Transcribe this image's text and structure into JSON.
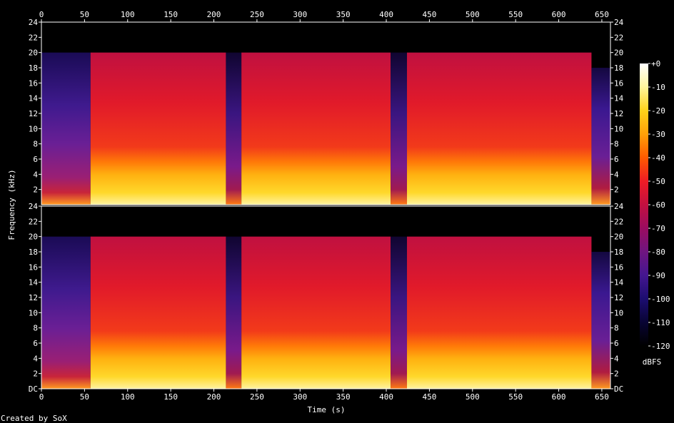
{
  "chart_data": {
    "type": "heatmap",
    "title": "",
    "xlabel": "Time (s)",
    "ylabel": "Frequency (kHz)",
    "xlim": [
      0,
      660
    ],
    "ylim_khz": [
      0,
      24
    ],
    "x_ticks": [
      0,
      50,
      100,
      150,
      200,
      250,
      300,
      350,
      400,
      450,
      500,
      550,
      600,
      650
    ],
    "channel_top_ticks": [
      "24",
      "22",
      "20",
      "18",
      "16",
      "14",
      "12",
      "10",
      "8",
      "6",
      "4",
      "2"
    ],
    "channel_bottom_ticks": [
      "24",
      "22",
      "20",
      "18",
      "16",
      "14",
      "12",
      "10",
      "8",
      "6",
      "4",
      "2",
      "DC"
    ],
    "channels": 2,
    "colorbar": {
      "label": "dBFS",
      "range": [
        -120,
        0
      ],
      "ticks": [
        "+0",
        "-10",
        "-20",
        "-30",
        "-40",
        "-50",
        "-60",
        "-70",
        "-80",
        "-90",
        "-100",
        "-110",
        "-120"
      ],
      "colors": [
        "#ffffff",
        "#fff69c",
        "#ffd21a",
        "#ffa008",
        "#ff5a00",
        "#ee1c25",
        "#c41040",
        "#9a0c60",
        "#6f1580",
        "#441690",
        "#1c0d70",
        "#080433",
        "#000000"
      ]
    },
    "segments": [
      {
        "t_start": 0,
        "t_end": 57,
        "level": "quiet",
        "max_freq_khz": 20
      },
      {
        "t_start": 57,
        "t_end": 214,
        "level": "loud",
        "max_freq_khz": 20
      },
      {
        "t_start": 214,
        "t_end": 232,
        "level": "gap",
        "max_freq_khz": 20
      },
      {
        "t_start": 232,
        "t_end": 405,
        "level": "loud",
        "max_freq_khz": 20
      },
      {
        "t_start": 405,
        "t_end": 424,
        "level": "gap",
        "max_freq_khz": 20
      },
      {
        "t_start": 424,
        "t_end": 638,
        "level": "loud",
        "max_freq_khz": 20
      },
      {
        "t_start": 638,
        "t_end": 660,
        "level": "fade",
        "max_freq_khz": 18
      }
    ],
    "legend_position": "right"
  },
  "footer": {
    "credit": "Created by SoX"
  }
}
